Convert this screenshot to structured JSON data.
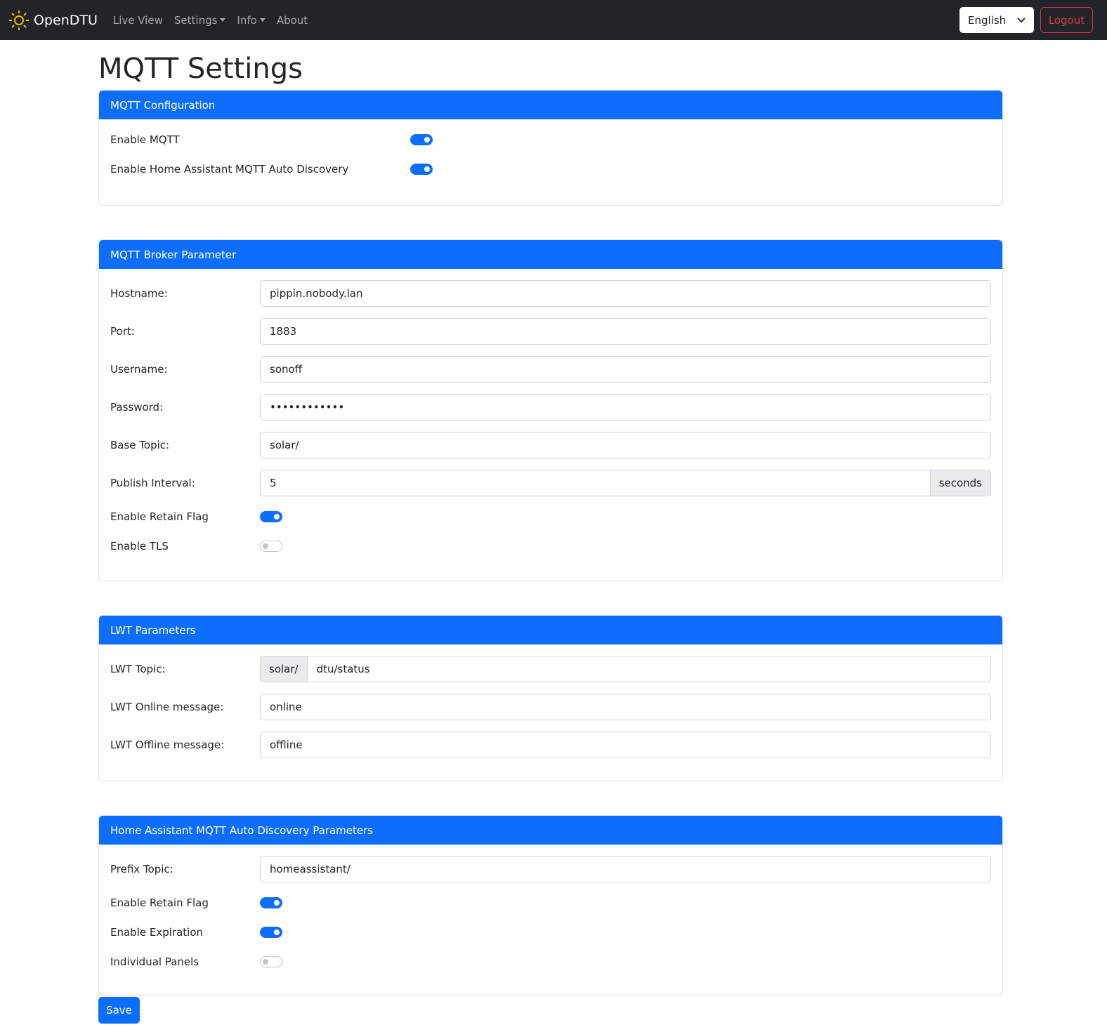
{
  "nav": {
    "brand": "OpenDTU",
    "items": [
      "Live View",
      "Settings",
      "Info",
      "About"
    ],
    "language": "English",
    "logout": "Logout"
  },
  "page": {
    "title": "MQTT Settings",
    "save": "Save"
  },
  "config": {
    "title": "MQTT Configuration",
    "enable_mqtt": {
      "label": "Enable MQTT",
      "on": true
    },
    "enable_ha": {
      "label": "Enable Home Assistant MQTT Auto Discovery",
      "on": true
    }
  },
  "broker": {
    "title": "MQTT Broker Parameter",
    "hostname": {
      "label": "Hostname:",
      "value": "pippin.nobody.lan"
    },
    "port": {
      "label": "Port:",
      "value": "1883"
    },
    "username": {
      "label": "Username:",
      "value": "sonoff"
    },
    "password": {
      "label": "Password:",
      "value": "••••••••••••"
    },
    "base_topic": {
      "label": "Base Topic:",
      "value": "solar/"
    },
    "publish_interval": {
      "label": "Publish Interval:",
      "value": "5",
      "unit": "seconds"
    },
    "retain": {
      "label": "Enable Retain Flag",
      "on": true
    },
    "tls": {
      "label": "Enable TLS",
      "on": false
    }
  },
  "lwt": {
    "title": "LWT Parameters",
    "topic": {
      "label": "LWT Topic:",
      "prefix": "solar/",
      "value": "dtu/status"
    },
    "online": {
      "label": "LWT Online message:",
      "value": "online"
    },
    "offline": {
      "label": "LWT Offline message:",
      "value": "offline"
    }
  },
  "ha": {
    "title": "Home Assistant MQTT Auto Discovery Parameters",
    "prefix": {
      "label": "Prefix Topic:",
      "value": "homeassistant/"
    },
    "retain": {
      "label": "Enable Retain Flag",
      "on": true
    },
    "expiration": {
      "label": "Enable Expiration",
      "on": true
    },
    "panels": {
      "label": "Individual Panels",
      "on": false
    }
  }
}
